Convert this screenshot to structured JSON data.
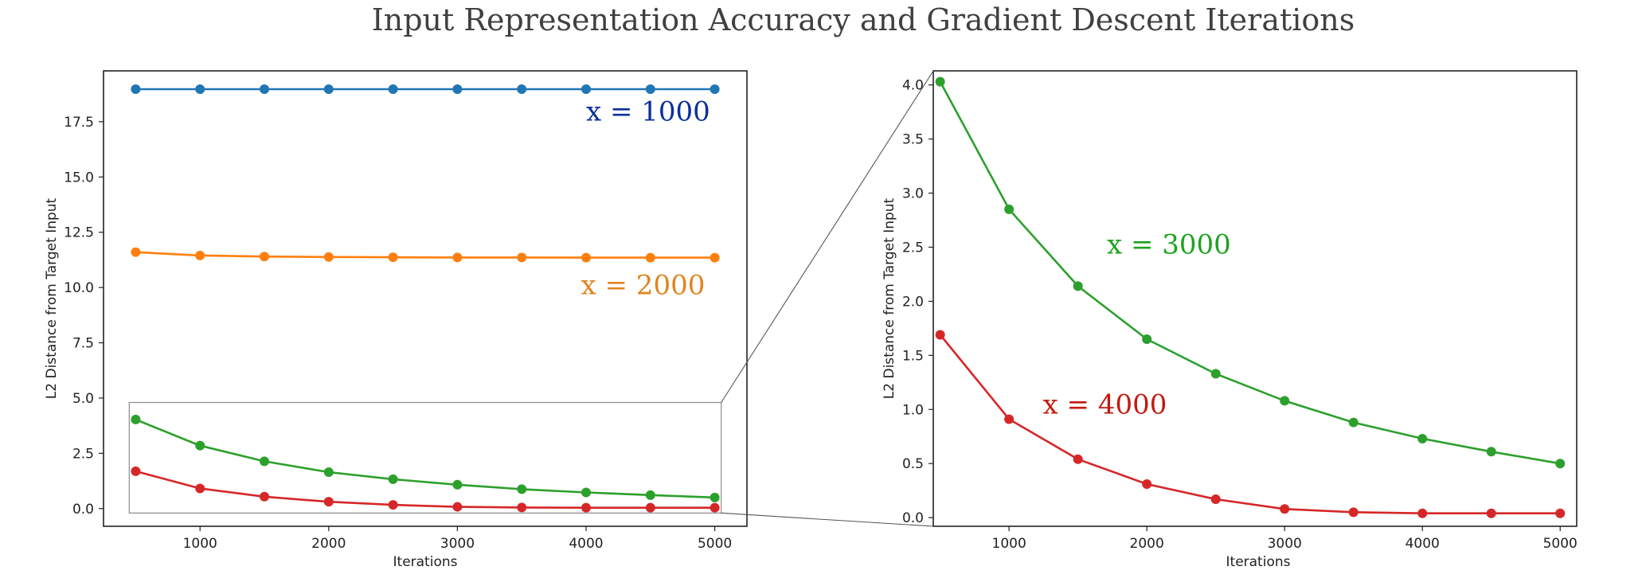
{
  "title": "Input Representation Accuracy and Gradient Descent Iterations",
  "chart_data": [
    {
      "type": "line",
      "panel": "main",
      "xlabel": "Iterations",
      "ylabel": "L2 Distance from Target Input",
      "xlim": [
        250,
        5250
      ],
      "ylim": [
        -0.8,
        19.8
      ],
      "x_ticks": [
        "1000",
        "2000",
        "3000",
        "4000",
        "5000"
      ],
      "y_ticks": [
        "0.0",
        "2.5",
        "5.0",
        "7.5",
        "10.0",
        "12.5",
        "15.0",
        "17.5"
      ],
      "grid": false,
      "x": [
        500,
        1000,
        1500,
        2000,
        2500,
        3000,
        3500,
        4000,
        4500,
        5000
      ],
      "series": [
        {
          "color": "#1f77b4",
          "values": [
            18.97,
            18.97,
            18.97,
            18.97,
            18.97,
            18.97,
            18.97,
            18.97,
            18.97,
            18.97
          ]
        },
        {
          "color": "#ff7f0e",
          "values": [
            11.6,
            11.45,
            11.4,
            11.38,
            11.37,
            11.36,
            11.36,
            11.35,
            11.35,
            11.35
          ]
        },
        {
          "color": "#2ca02c",
          "values": [
            4.03,
            2.85,
            2.14,
            1.65,
            1.33,
            1.08,
            0.88,
            0.73,
            0.61,
            0.5
          ]
        },
        {
          "color": "#d62728",
          "values": [
            1.69,
            0.91,
            0.54,
            0.31,
            0.17,
            0.08,
            0.05,
            0.04,
            0.04,
            0.04
          ]
        }
      ],
      "annotations": [
        {
          "text": "x = 1000",
          "color": "#0d2f9c",
          "x": 4000,
          "y": 17.55
        },
        {
          "text": "x = 2000",
          "color": "#e0841f",
          "x": 3960,
          "y": 9.7
        }
      ],
      "inset_region": {
        "x": [
          450,
          5050
        ],
        "y": [
          -0.2,
          4.8
        ]
      }
    },
    {
      "type": "line",
      "panel": "zoom",
      "xlabel": "Iterations",
      "ylabel": "L2 Distance from Target Input",
      "xlim": [
        450,
        5120
      ],
      "ylim": [
        -0.08,
        4.13
      ],
      "x_ticks": [
        "1000",
        "2000",
        "3000",
        "4000",
        "5000"
      ],
      "y_ticks": [
        "0.0",
        "0.5",
        "1.0",
        "1.5",
        "2.0",
        "2.5",
        "3.0",
        "3.5",
        "4.0"
      ],
      "grid": false,
      "x": [
        500,
        1000,
        1500,
        2000,
        2500,
        3000,
        3500,
        4000,
        4500,
        5000
      ],
      "series": [
        {
          "color": "#2ca02c",
          "values": [
            4.03,
            2.85,
            2.14,
            1.65,
            1.33,
            1.08,
            0.88,
            0.73,
            0.61,
            0.5
          ]
        },
        {
          "color": "#d62728",
          "values": [
            1.69,
            0.91,
            0.54,
            0.31,
            0.17,
            0.08,
            0.05,
            0.04,
            0.04,
            0.04
          ]
        }
      ],
      "annotations": [
        {
          "text": "x = 3000",
          "color": "#1fa31f",
          "x": 1710,
          "y": 2.44
        },
        {
          "text": "x = 4000",
          "color": "#c41a10",
          "x": 1245,
          "y": 0.96
        }
      ]
    }
  ]
}
